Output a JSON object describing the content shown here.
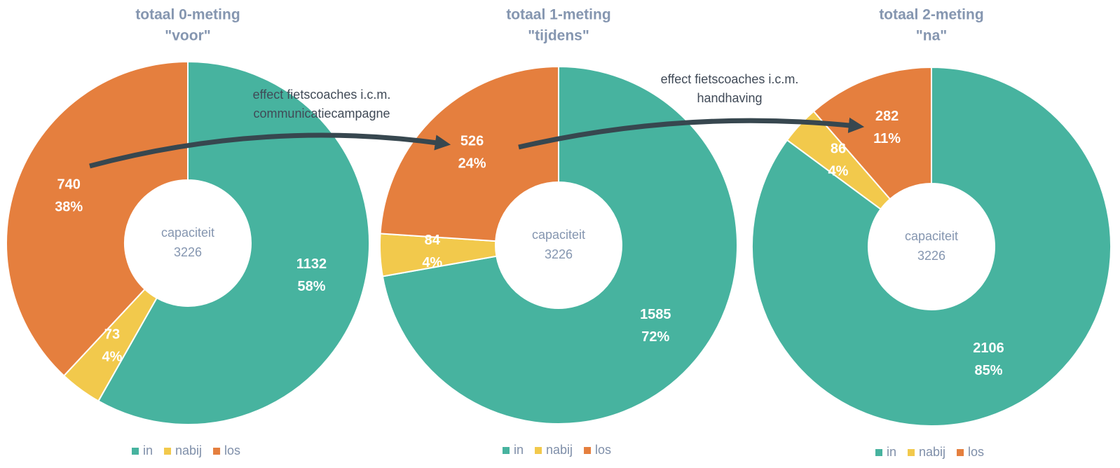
{
  "chart_data": [
    {
      "type": "donut",
      "title": "totaal 0-meting",
      "subtitle": "\"voor\"",
      "center_label": "capaciteit",
      "center_value": 3226,
      "categories": [
        "in",
        "nabij",
        "los"
      ],
      "values": [
        1132,
        73,
        740
      ],
      "percent_labels": [
        "58%",
        "4%",
        "38%"
      ],
      "colors": [
        "#47b39f",
        "#f2c94c",
        "#e57f3e"
      ],
      "legend": "bottom"
    },
    {
      "type": "donut",
      "title": "totaal 1-meting",
      "subtitle": "\"tijdens\"",
      "center_label": "capaciteit",
      "center_value": 3226,
      "categories": [
        "in",
        "nabij",
        "los"
      ],
      "values": [
        1585,
        84,
        526
      ],
      "percent_labels": [
        "72%",
        "4%",
        "24%"
      ],
      "colors": [
        "#47b39f",
        "#f2c94c",
        "#e57f3e"
      ],
      "legend": "bottom"
    },
    {
      "type": "donut",
      "title": "totaal 2-meting",
      "subtitle": "\"na\"",
      "center_label": "capaciteit",
      "center_value": 3226,
      "categories": [
        "in",
        "nabij",
        "los"
      ],
      "values": [
        2106,
        86,
        282
      ],
      "percent_labels": [
        "85%",
        "4%",
        "11%"
      ],
      "colors": [
        "#47b39f",
        "#f2c94c",
        "#e57f3e"
      ],
      "legend": "bottom"
    }
  ],
  "annotations": [
    {
      "lines": [
        "effect fietscoaches i.c.m.",
        "communicatiecampagne"
      ]
    },
    {
      "lines": [
        "effect fietscoaches i.c.m.",
        "handhaving"
      ]
    }
  ]
}
